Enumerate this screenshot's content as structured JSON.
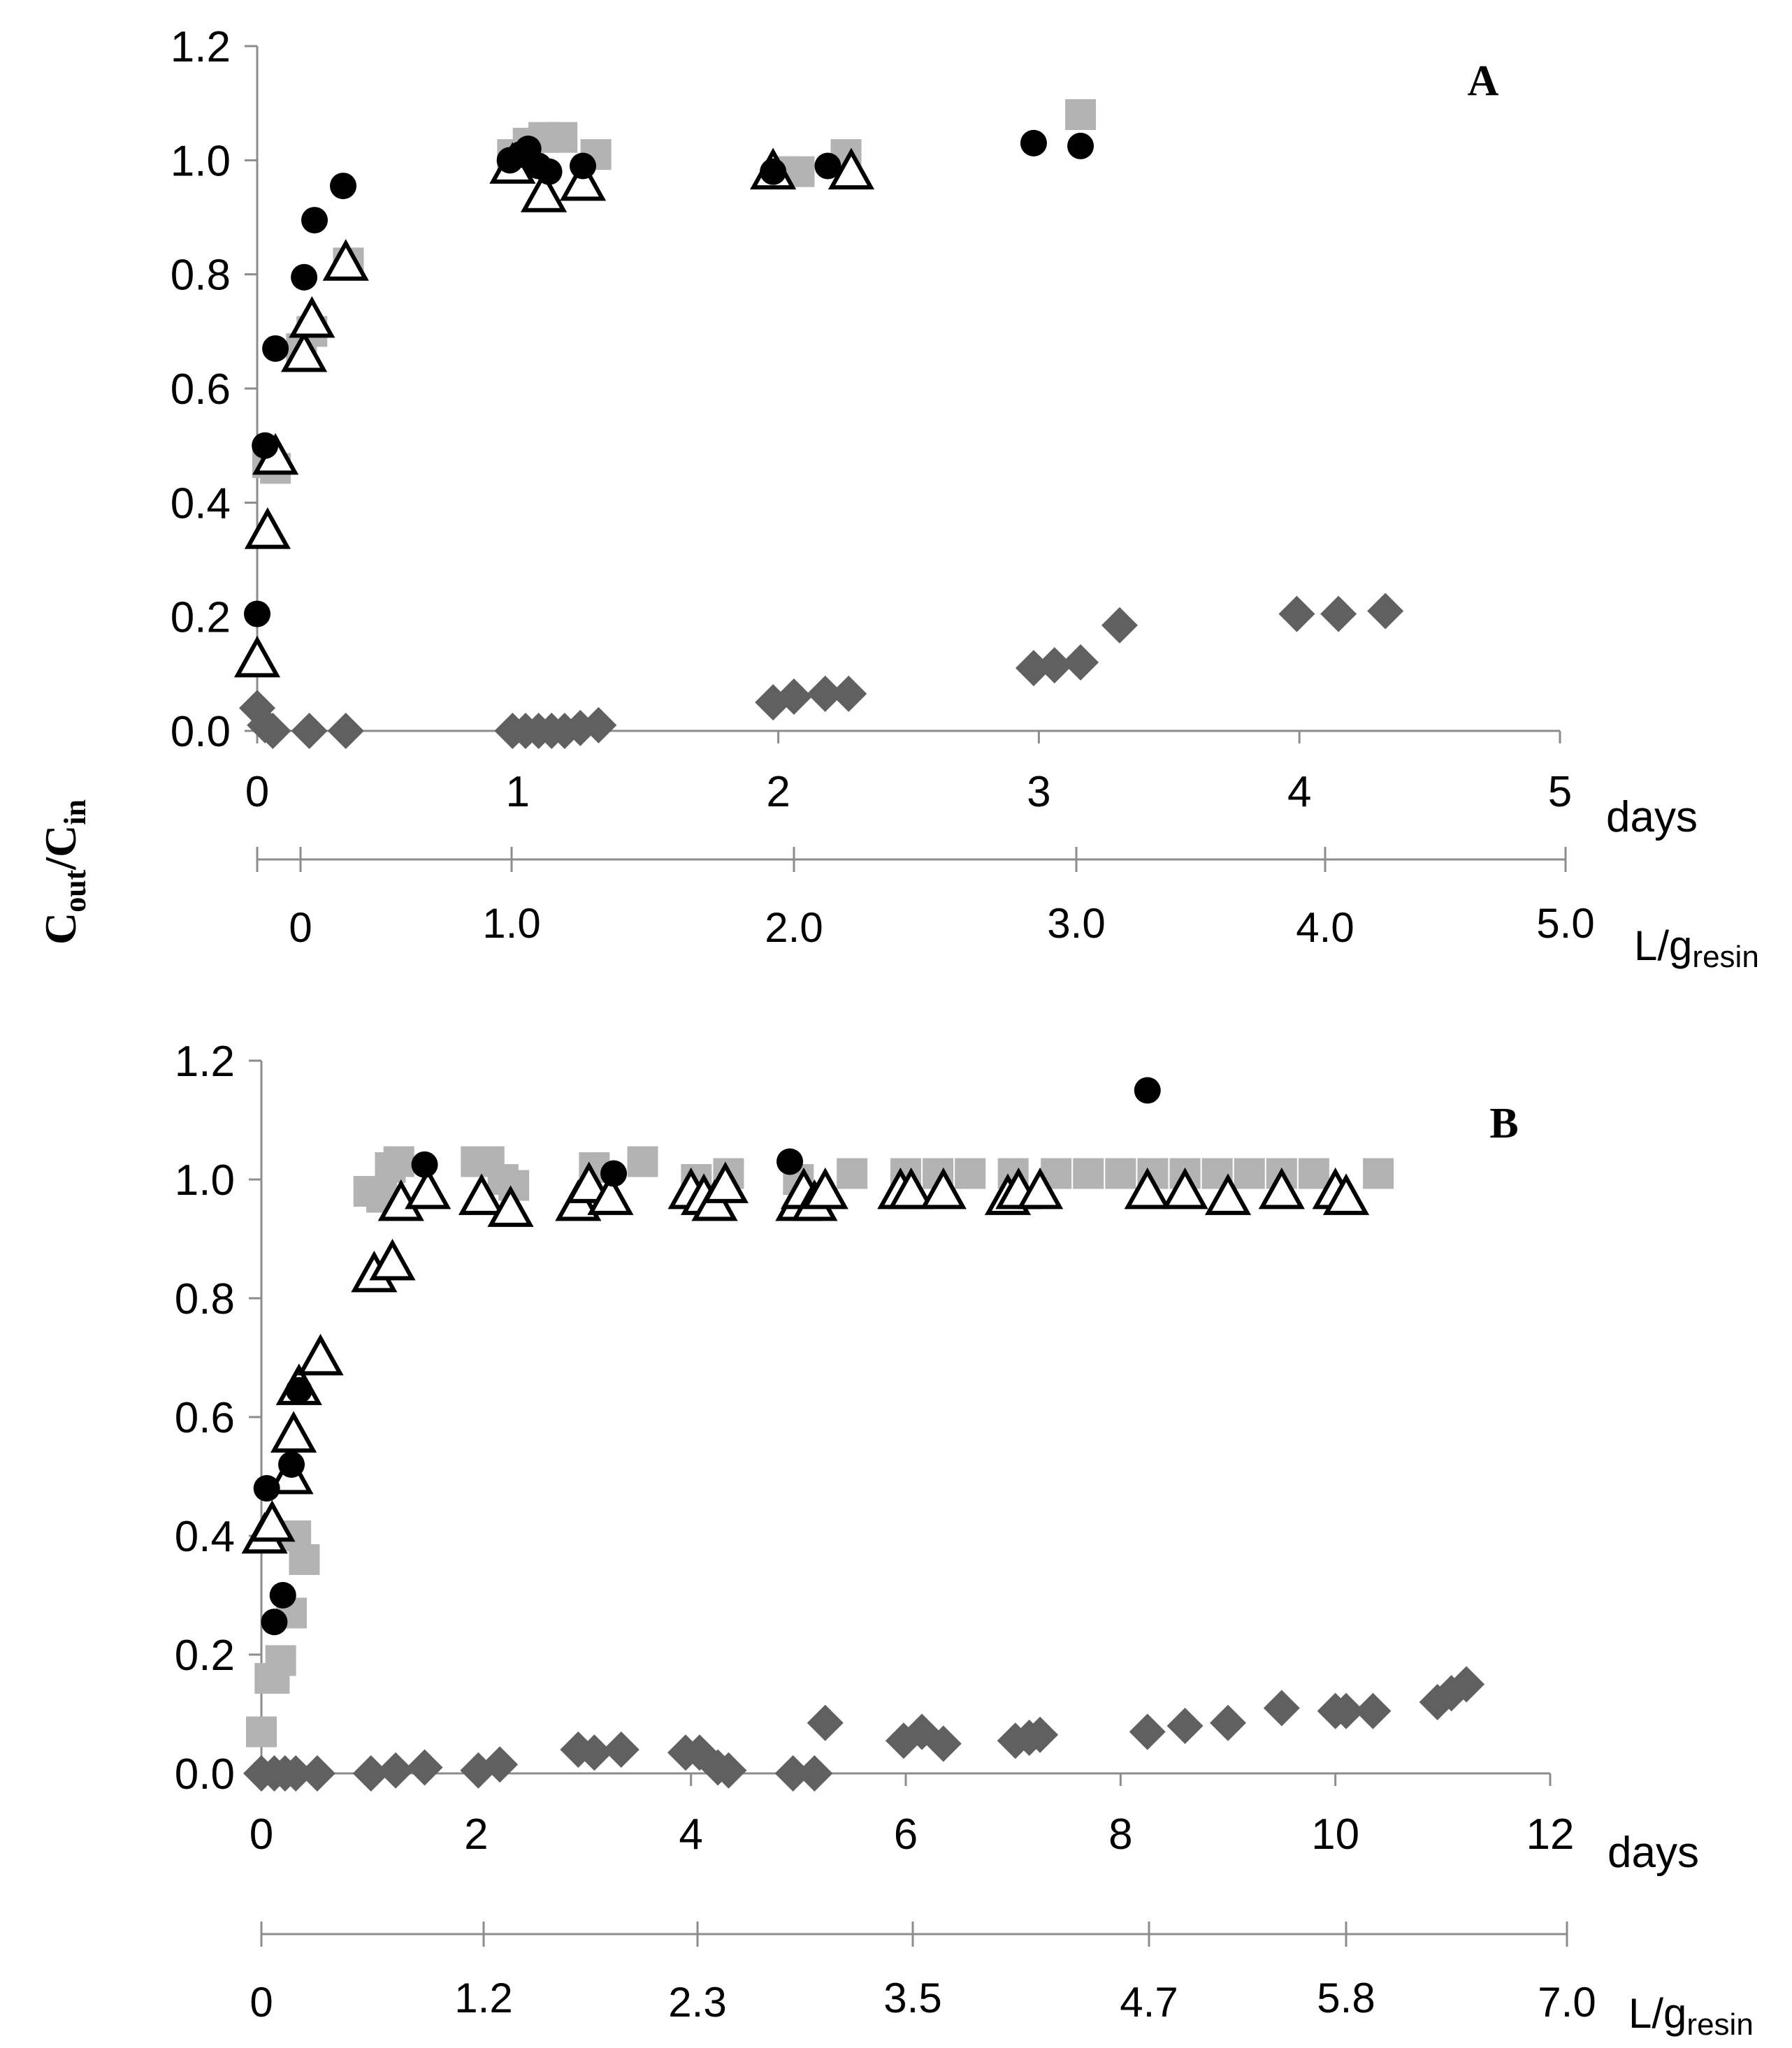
{
  "figure": {
    "y_axis_label": {
      "main": "C",
      "sub1": "out",
      "sep": "/C",
      "sub2": "in"
    },
    "colors": {
      "circle": "#000000",
      "square": "#b3b3b3",
      "triangle_stroke": "#000000",
      "triangle_fill": "#ffffff",
      "diamond": "#606060",
      "axis": "#8c8c8c"
    }
  },
  "chart_data": [
    {
      "type": "scatter",
      "panel_label": "A",
      "ylim": [
        0,
        1.2
      ],
      "y_ticks": [
        "0.0",
        "0.2",
        "0.4",
        "0.6",
        "0.8",
        "1.0",
        "1.2"
      ],
      "xlim": [
        0,
        5
      ],
      "x_ticks": [
        "0",
        "1",
        "2",
        "3",
        "4",
        "5"
      ],
      "xlabel": "days",
      "secondary_axis": {
        "ticks": [
          "0",
          "1.0",
          "2.0",
          "3.0",
          "4.0",
          "5.0"
        ],
        "label_main": "L/g",
        "label_sub": "resin"
      },
      "series": [
        {
          "name": "circle",
          "marker": "circle",
          "points": [
            [
              0.0,
              0.205
            ],
            [
              0.03,
              0.5
            ],
            [
              0.07,
              0.67
            ],
            [
              0.18,
              0.795
            ],
            [
              0.22,
              0.895
            ],
            [
              0.33,
              0.955
            ],
            [
              0.97,
              1.0
            ],
            [
              1.01,
              1.01
            ],
            [
              1.04,
              1.02
            ],
            [
              1.08,
              0.99
            ],
            [
              1.12,
              0.98
            ],
            [
              1.25,
              0.99
            ],
            [
              1.98,
              0.98
            ],
            [
              2.19,
              0.99
            ],
            [
              2.98,
              1.03
            ],
            [
              3.16,
              1.025
            ]
          ]
        },
        {
          "name": "square",
          "marker": "square",
          "points": [
            [
              0.04,
              0.47
            ],
            [
              0.07,
              0.46
            ],
            [
              0.17,
              0.67
            ],
            [
              0.21,
              0.7
            ],
            [
              0.35,
              0.82
            ],
            [
              0.98,
              1.01
            ],
            [
              1.04,
              1.03
            ],
            [
              1.1,
              1.04
            ],
            [
              1.17,
              1.04
            ],
            [
              1.3,
              1.01
            ],
            [
              2.02,
              0.98
            ],
            [
              2.08,
              0.98
            ],
            [
              2.26,
              1.01
            ],
            [
              3.16,
              1.08
            ]
          ]
        },
        {
          "name": "triangle",
          "marker": "triangle",
          "points": [
            [
              0.0,
              0.125
            ],
            [
              0.04,
              0.35
            ],
            [
              0.07,
              0.48
            ],
            [
              0.18,
              0.66
            ],
            [
              0.21,
              0.72
            ],
            [
              0.34,
              0.82
            ],
            [
              0.98,
              0.99
            ],
            [
              1.1,
              0.94
            ],
            [
              1.25,
              0.96
            ],
            [
              1.98,
              0.98
            ],
            [
              2.28,
              0.98
            ]
          ]
        },
        {
          "name": "diamond",
          "marker": "diamond",
          "points": [
            [
              0.0,
              0.04
            ],
            [
              0.03,
              0.01
            ],
            [
              0.06,
              0.0
            ],
            [
              0.2,
              0.0
            ],
            [
              0.34,
              0.0
            ],
            [
              0.98,
              0.0
            ],
            [
              1.03,
              0.0
            ],
            [
              1.08,
              0.0
            ],
            [
              1.13,
              0.0
            ],
            [
              1.18,
              0.0
            ],
            [
              1.24,
              0.005
            ],
            [
              1.31,
              0.01
            ],
            [
              1.98,
              0.05
            ],
            [
              2.06,
              0.06
            ],
            [
              2.18,
              0.065
            ],
            [
              2.27,
              0.065
            ],
            [
              2.98,
              0.11
            ],
            [
              3.06,
              0.115
            ],
            [
              3.16,
              0.12
            ],
            [
              3.31,
              0.185
            ],
            [
              3.99,
              0.205
            ],
            [
              4.15,
              0.205
            ],
            [
              4.33,
              0.21
            ]
          ]
        }
      ]
    },
    {
      "type": "scatter",
      "panel_label": "B",
      "ylim": [
        0,
        1.2
      ],
      "y_ticks": [
        "0.0",
        "0.2",
        "0.4",
        "0.6",
        "0.8",
        "1.0",
        "1.2"
      ],
      "xlim": [
        0,
        12
      ],
      "x_ticks": [
        "0",
        "2",
        "4",
        "6",
        "8",
        "10",
        "12"
      ],
      "xlabel": "days",
      "secondary_axis": {
        "ticks": [
          "0",
          "1.2",
          "2.3",
          "3.5",
          "4.7",
          "5.8",
          "7.0"
        ],
        "label_main": "L/g",
        "label_sub": "resin"
      },
      "series": [
        {
          "name": "circle",
          "marker": "circle",
          "points": [
            [
              0.05,
              0.48
            ],
            [
              0.12,
              0.255
            ],
            [
              0.2,
              0.3
            ],
            [
              0.28,
              0.52
            ],
            [
              0.35,
              0.645
            ],
            [
              1.52,
              1.025
            ],
            [
              3.28,
              1.01
            ],
            [
              4.92,
              1.03
            ],
            [
              8.25,
              1.15
            ]
          ]
        },
        {
          "name": "square",
          "marker": "square",
          "points": [
            [
              0.0,
              0.07
            ],
            [
              0.08,
              0.16
            ],
            [
              0.12,
              0.16
            ],
            [
              0.18,
              0.19
            ],
            [
              0.28,
              0.27
            ],
            [
              0.32,
              0.4
            ],
            [
              0.4,
              0.36
            ],
            [
              1.0,
              0.98
            ],
            [
              1.12,
              0.97
            ],
            [
              1.2,
              1.02
            ],
            [
              1.28,
              1.03
            ],
            [
              2.0,
              1.03
            ],
            [
              2.12,
              1.03
            ],
            [
              2.25,
              1.0
            ],
            [
              2.35,
              0.99
            ],
            [
              3.1,
              1.02
            ],
            [
              3.55,
              1.03
            ],
            [
              4.05,
              1.0
            ],
            [
              4.35,
              1.01
            ],
            [
              5.0,
              1.0
            ],
            [
              5.5,
              1.01
            ],
            [
              6.0,
              1.01
            ],
            [
              6.3,
              1.01
            ],
            [
              6.6,
              1.01
            ],
            [
              7.0,
              1.01
            ],
            [
              7.4,
              1.01
            ],
            [
              7.7,
              1.01
            ],
            [
              8.0,
              1.01
            ],
            [
              8.3,
              1.01
            ],
            [
              8.6,
              1.01
            ],
            [
              8.9,
              1.01
            ],
            [
              9.2,
              1.01
            ],
            [
              9.5,
              1.01
            ],
            [
              9.8,
              1.01
            ],
            [
              10.4,
              1.01
            ]
          ]
        },
        {
          "name": "triangle",
          "marker": "triangle",
          "points": [
            [
              0.03,
              0.4
            ],
            [
              0.1,
              0.42
            ],
            [
              0.27,
              0.5
            ],
            [
              0.3,
              0.57
            ],
            [
              0.35,
              0.65
            ],
            [
              0.55,
              0.7
            ],
            [
              1.05,
              0.84
            ],
            [
              1.22,
              0.86
            ],
            [
              1.3,
              0.96
            ],
            [
              1.55,
              0.98
            ],
            [
              2.05,
              0.97
            ],
            [
              2.32,
              0.95
            ],
            [
              2.95,
              0.96
            ],
            [
              3.05,
              0.99
            ],
            [
              3.25,
              0.97
            ],
            [
              4.0,
              0.98
            ],
            [
              4.12,
              0.97
            ],
            [
              4.22,
              0.96
            ],
            [
              4.32,
              0.99
            ],
            [
              5.0,
              0.96
            ],
            [
              5.05,
              0.98
            ],
            [
              5.15,
              0.96
            ],
            [
              5.25,
              0.98
            ],
            [
              5.95,
              0.98
            ],
            [
              6.05,
              0.98
            ],
            [
              6.35,
              0.98
            ],
            [
              6.95,
              0.97
            ],
            [
              7.05,
              0.98
            ],
            [
              7.25,
              0.98
            ],
            [
              8.25,
              0.98
            ],
            [
              8.6,
              0.98
            ],
            [
              9.0,
              0.97
            ],
            [
              9.5,
              0.98
            ],
            [
              10.0,
              0.98
            ],
            [
              10.1,
              0.97
            ]
          ]
        },
        {
          "name": "diamond",
          "marker": "diamond",
          "points": [
            [
              0.0,
              0.0
            ],
            [
              0.12,
              0.0
            ],
            [
              0.22,
              0.0
            ],
            [
              0.32,
              0.0
            ],
            [
              0.52,
              0.0
            ],
            [
              1.02,
              0.0
            ],
            [
              1.25,
              0.005
            ],
            [
              1.52,
              0.01
            ],
            [
              2.02,
              0.005
            ],
            [
              2.22,
              0.015
            ],
            [
              2.95,
              0.04
            ],
            [
              3.1,
              0.035
            ],
            [
              3.35,
              0.04
            ],
            [
              3.95,
              0.035
            ],
            [
              4.08,
              0.035
            ],
            [
              4.25,
              0.01
            ],
            [
              4.35,
              0.005
            ],
            [
              4.95,
              0.0
            ],
            [
              5.15,
              0.0
            ],
            [
              5.25,
              0.085
            ],
            [
              5.98,
              0.055
            ],
            [
              6.15,
              0.07
            ],
            [
              6.35,
              0.05
            ],
            [
              7.02,
              0.055
            ],
            [
              7.15,
              0.06
            ],
            [
              7.25,
              0.065
            ],
            [
              8.25,
              0.07
            ],
            [
              8.6,
              0.08
            ],
            [
              9.0,
              0.085
            ],
            [
              9.5,
              0.11
            ],
            [
              10.0,
              0.105
            ],
            [
              10.1,
              0.105
            ],
            [
              10.35,
              0.105
            ],
            [
              10.95,
              0.12
            ],
            [
              11.08,
              0.135
            ],
            [
              11.22,
              0.15
            ]
          ]
        }
      ]
    }
  ]
}
